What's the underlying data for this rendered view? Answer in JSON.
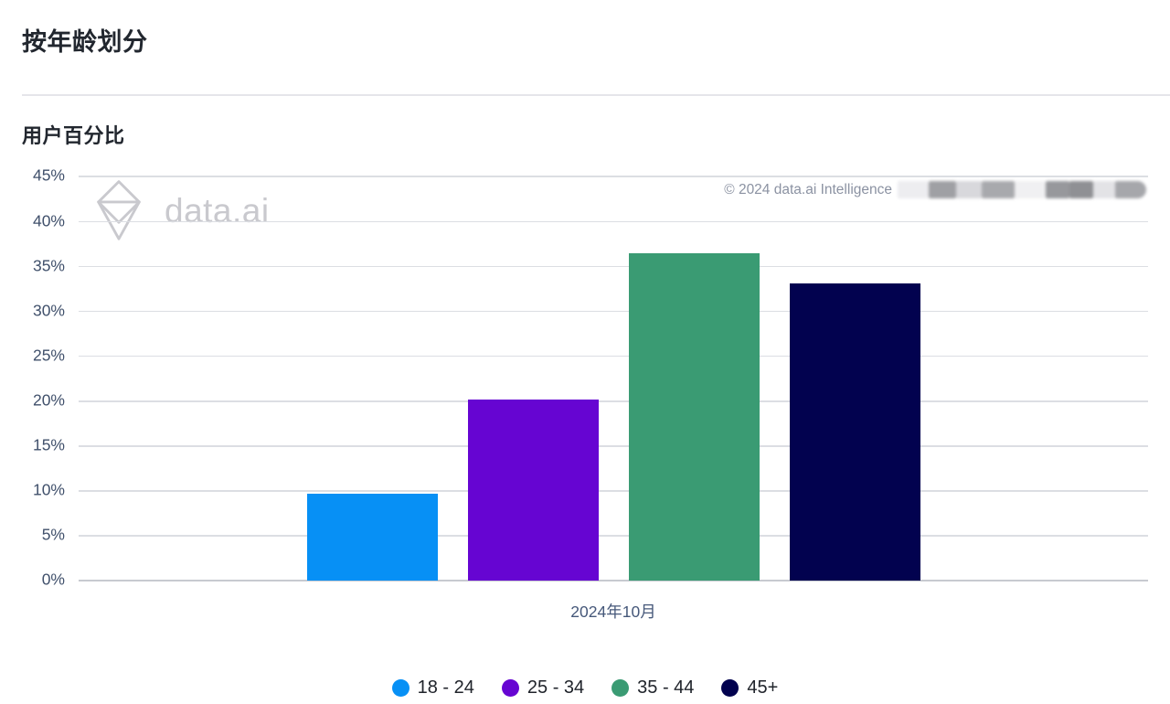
{
  "header": {
    "title": "按年龄划分"
  },
  "section": {
    "title": "用户百分比"
  },
  "watermark": {
    "logo_text": "data.ai"
  },
  "copyright": {
    "text": "© 2024 data.ai Intelligence"
  },
  "chart_data": {
    "type": "bar",
    "title": "按年龄划分 — 用户百分比",
    "xlabel": "2024年10月",
    "ylabel": "用户百分比",
    "categories": [
      "2024年10月"
    ],
    "series": [
      {
        "name": "18 - 24",
        "color": "#0790f5",
        "values": [
          9.7
        ]
      },
      {
        "name": "25 - 34",
        "color": "#6605d2",
        "values": [
          20.2
        ]
      },
      {
        "name": "35 - 44",
        "color": "#3a9b73",
        "values": [
          36.5
        ]
      },
      {
        "name": "45+",
        "color": "#02024f",
        "values": [
          33.1
        ]
      }
    ],
    "ylim": [
      0,
      45
    ],
    "yticks": [
      "45%",
      "40%",
      "35%",
      "30%",
      "25%",
      "20%",
      "15%",
      "10%",
      "5%",
      "0%"
    ],
    "ytick_values": [
      45,
      40,
      35,
      30,
      25,
      20,
      15,
      10,
      5,
      0
    ],
    "grid": true,
    "legend_position": "bottom"
  }
}
